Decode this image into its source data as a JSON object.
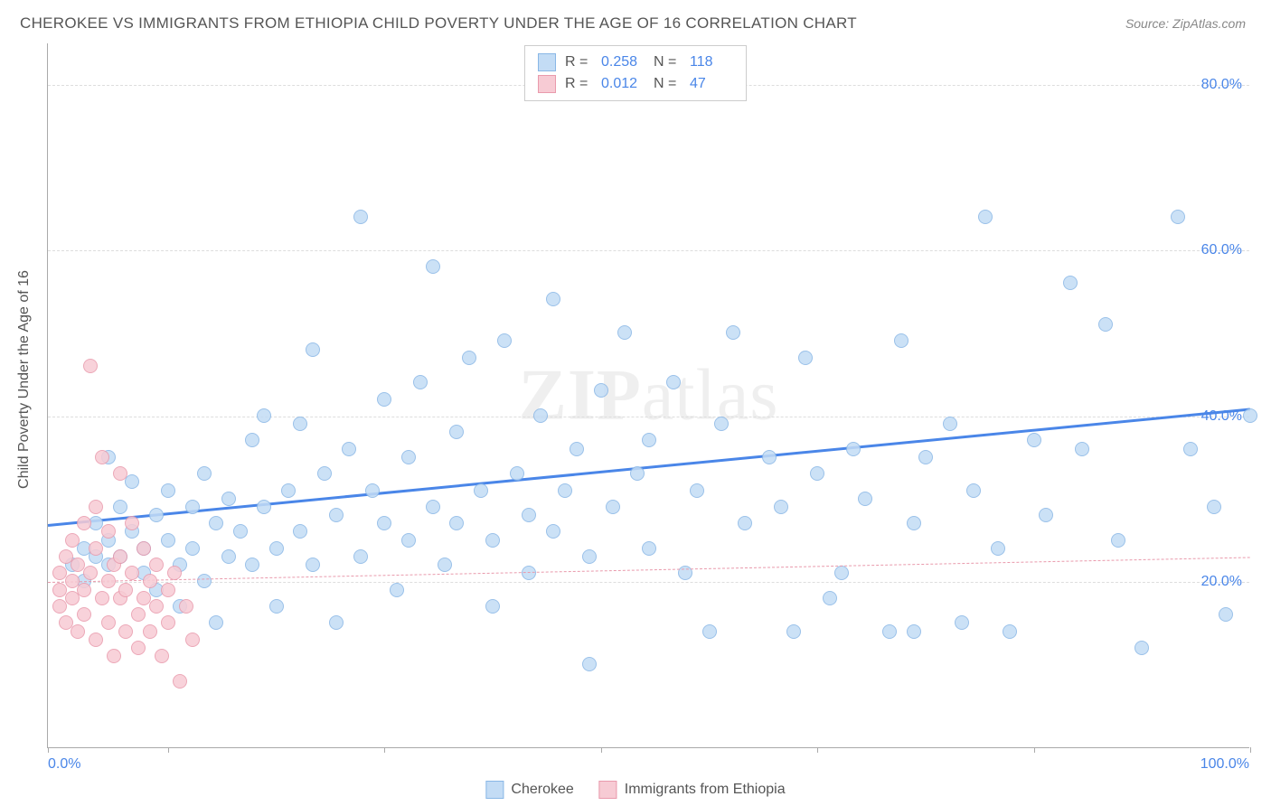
{
  "title": "CHEROKEE VS IMMIGRANTS FROM ETHIOPIA CHILD POVERTY UNDER THE AGE OF 16 CORRELATION CHART",
  "source": "Source: ZipAtlas.com",
  "ylabel": "Child Poverty Under the Age of 16",
  "watermark_a": "ZIP",
  "watermark_b": "atlas",
  "chart": {
    "type": "scatter",
    "xlim": [
      0,
      100
    ],
    "ylim": [
      0,
      85
    ],
    "background_color": "#ffffff",
    "grid_color": "#dddddd",
    "axis_color": "#aaaaaa",
    "tick_label_color": "#4a86e8",
    "y_ticks": [
      20,
      40,
      60,
      80
    ],
    "y_tick_labels": [
      "20.0%",
      "40.0%",
      "60.0%",
      "80.0%"
    ],
    "x_ticks": [
      0,
      10,
      28,
      46,
      64,
      82,
      100
    ],
    "x_min_label": "0.0%",
    "x_max_label": "100.0%",
    "marker_radius": 8,
    "series": [
      {
        "name": "Cherokee",
        "fill": "#c3dcf5",
        "stroke": "#89b7e6",
        "r_value": "0.258",
        "n_value": "118",
        "trend": {
          "x1": 0,
          "y1": 27,
          "x2": 100,
          "y2": 41,
          "color": "#4a86e8",
          "width": 3,
          "dash": false
        },
        "points": [
          [
            2,
            22
          ],
          [
            3,
            24
          ],
          [
            3,
            20
          ],
          [
            4,
            27
          ],
          [
            4,
            23
          ],
          [
            5,
            25
          ],
          [
            5,
            22
          ],
          [
            5,
            35
          ],
          [
            6,
            29
          ],
          [
            6,
            23
          ],
          [
            7,
            26
          ],
          [
            7,
            32
          ],
          [
            8,
            24
          ],
          [
            8,
            21
          ],
          [
            9,
            28
          ],
          [
            9,
            19
          ],
          [
            10,
            25
          ],
          [
            10,
            31
          ],
          [
            11,
            22
          ],
          [
            11,
            17
          ],
          [
            12,
            29
          ],
          [
            12,
            24
          ],
          [
            13,
            33
          ],
          [
            13,
            20
          ],
          [
            14,
            27
          ],
          [
            14,
            15
          ],
          [
            15,
            30
          ],
          [
            15,
            23
          ],
          [
            16,
            26
          ],
          [
            17,
            37
          ],
          [
            17,
            22
          ],
          [
            18,
            29
          ],
          [
            18,
            40
          ],
          [
            19,
            24
          ],
          [
            19,
            17
          ],
          [
            20,
            31
          ],
          [
            21,
            26
          ],
          [
            21,
            39
          ],
          [
            22,
            22
          ],
          [
            22,
            48
          ],
          [
            23,
            33
          ],
          [
            24,
            28
          ],
          [
            24,
            15
          ],
          [
            25,
            36
          ],
          [
            26,
            23
          ],
          [
            26,
            64
          ],
          [
            27,
            31
          ],
          [
            28,
            27
          ],
          [
            28,
            42
          ],
          [
            29,
            19
          ],
          [
            30,
            35
          ],
          [
            30,
            25
          ],
          [
            31,
            44
          ],
          [
            32,
            29
          ],
          [
            32,
            58
          ],
          [
            33,
            22
          ],
          [
            34,
            38
          ],
          [
            34,
            27
          ],
          [
            35,
            47
          ],
          [
            36,
            31
          ],
          [
            37,
            25
          ],
          [
            37,
            17
          ],
          [
            38,
            49
          ],
          [
            39,
            33
          ],
          [
            40,
            28
          ],
          [
            40,
            21
          ],
          [
            41,
            40
          ],
          [
            42,
            54
          ],
          [
            42,
            26
          ],
          [
            43,
            31
          ],
          [
            44,
            36
          ],
          [
            45,
            23
          ],
          [
            45,
            10
          ],
          [
            46,
            43
          ],
          [
            47,
            29
          ],
          [
            48,
            50
          ],
          [
            49,
            33
          ],
          [
            50,
            37
          ],
          [
            50,
            24
          ],
          [
            52,
            44
          ],
          [
            53,
            21
          ],
          [
            54,
            31
          ],
          [
            55,
            14
          ],
          [
            56,
            39
          ],
          [
            57,
            50
          ],
          [
            58,
            27
          ],
          [
            60,
            35
          ],
          [
            61,
            29
          ],
          [
            62,
            14
          ],
          [
            63,
            47
          ],
          [
            64,
            33
          ],
          [
            65,
            18
          ],
          [
            66,
            21
          ],
          [
            67,
            36
          ],
          [
            68,
            30
          ],
          [
            70,
            14
          ],
          [
            71,
            49
          ],
          [
            72,
            27
          ],
          [
            72,
            14
          ],
          [
            73,
            35
          ],
          [
            75,
            39
          ],
          [
            76,
            15
          ],
          [
            77,
            31
          ],
          [
            78,
            64
          ],
          [
            79,
            24
          ],
          [
            80,
            14
          ],
          [
            82,
            37
          ],
          [
            83,
            28
          ],
          [
            85,
            56
          ],
          [
            86,
            36
          ],
          [
            88,
            51
          ],
          [
            89,
            25
          ],
          [
            91,
            12
          ],
          [
            94,
            64
          ],
          [
            95,
            36
          ],
          [
            97,
            29
          ],
          [
            98,
            16
          ],
          [
            100,
            40
          ]
        ]
      },
      {
        "name": "Immigrants from Ethiopia",
        "fill": "#f7cbd4",
        "stroke": "#e99aac",
        "r_value": "0.012",
        "n_value": "47",
        "trend": {
          "x1": 0,
          "y1": 20,
          "x2": 100,
          "y2": 23,
          "color": "#e99aac",
          "width": 1.5,
          "dash": true
        },
        "points": [
          [
            1,
            19
          ],
          [
            1,
            21
          ],
          [
            1,
            17
          ],
          [
            1.5,
            23
          ],
          [
            1.5,
            15
          ],
          [
            2,
            20
          ],
          [
            2,
            25
          ],
          [
            2,
            18
          ],
          [
            2.5,
            22
          ],
          [
            2.5,
            14
          ],
          [
            3,
            27
          ],
          [
            3,
            19
          ],
          [
            3,
            16
          ],
          [
            3.5,
            46
          ],
          [
            3.5,
            21
          ],
          [
            4,
            24
          ],
          [
            4,
            13
          ],
          [
            4,
            29
          ],
          [
            4.5,
            18
          ],
          [
            4.5,
            35
          ],
          [
            5,
            20
          ],
          [
            5,
            15
          ],
          [
            5,
            26
          ],
          [
            5.5,
            22
          ],
          [
            5.5,
            11
          ],
          [
            6,
            33
          ],
          [
            6,
            18
          ],
          [
            6,
            23
          ],
          [
            6.5,
            19
          ],
          [
            6.5,
            14
          ],
          [
            7,
            27
          ],
          [
            7,
            21
          ],
          [
            7.5,
            16
          ],
          [
            7.5,
            12
          ],
          [
            8,
            24
          ],
          [
            8,
            18
          ],
          [
            8.5,
            20
          ],
          [
            8.5,
            14
          ],
          [
            9,
            22
          ],
          [
            9,
            17
          ],
          [
            9.5,
            11
          ],
          [
            10,
            19
          ],
          [
            10,
            15
          ],
          [
            10.5,
            21
          ],
          [
            11,
            8
          ],
          [
            11.5,
            17
          ],
          [
            12,
            13
          ]
        ]
      }
    ]
  },
  "legend_bottom": [
    {
      "label": "Cherokee",
      "fill": "#c3dcf5",
      "stroke": "#89b7e6"
    },
    {
      "label": "Immigrants from Ethiopia",
      "fill": "#f7cbd4",
      "stroke": "#e99aac"
    }
  ],
  "legend_top_labels": {
    "r": "R =",
    "n": "N ="
  }
}
